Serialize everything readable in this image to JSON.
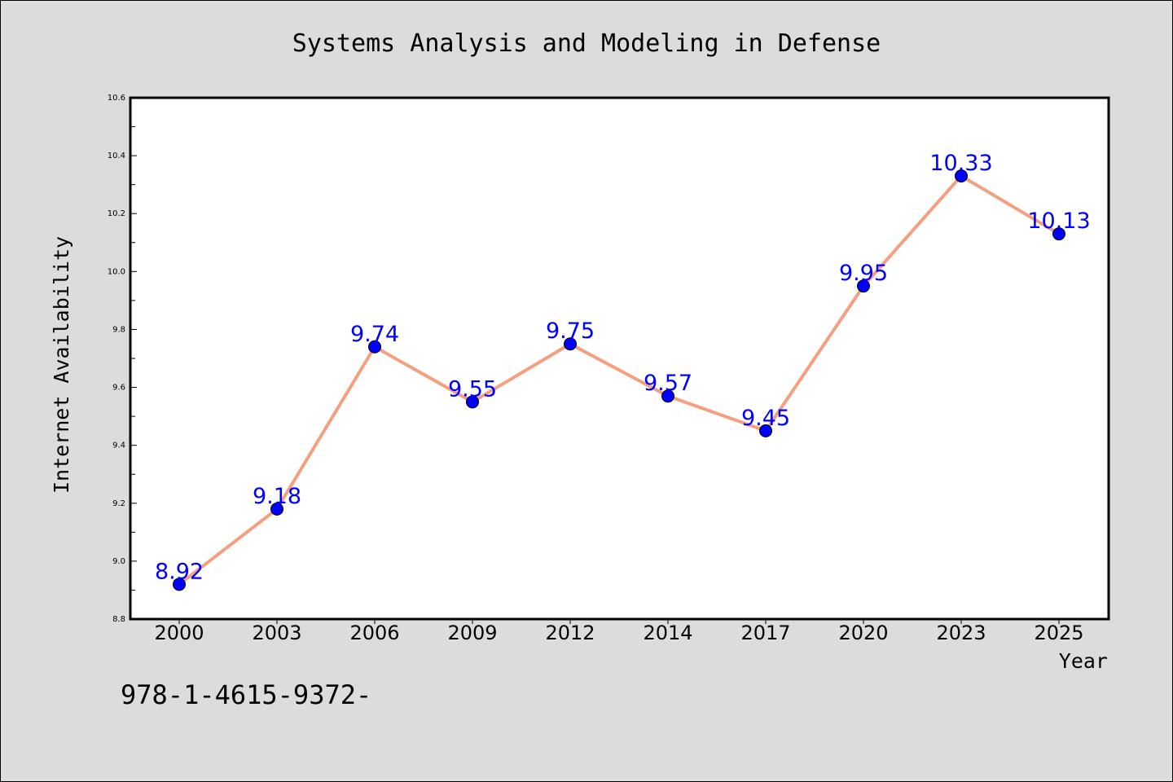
{
  "chart_data": {
    "type": "line",
    "title": "Systems Analysis and Modeling in Defense",
    "xlabel": "Year",
    "ylabel": "Internet Availability",
    "categories": [
      "2000",
      "2003",
      "2006",
      "2009",
      "2012",
      "2014",
      "2017",
      "2020",
      "2023",
      "2025"
    ],
    "values": [
      8.92,
      9.18,
      9.74,
      9.55,
      9.75,
      9.57,
      9.45,
      9.95,
      10.33,
      10.13
    ],
    "value_labels": [
      "8.92",
      "9.18",
      "9.74",
      "9.55",
      "9.75",
      "9.57",
      "9.45",
      "9.95",
      "10.33",
      "10.13"
    ],
    "ylim": [
      8.8,
      10.6
    ],
    "yticks": [
      "8.8",
      "9.0",
      "9.2",
      "9.4",
      "9.6",
      "9.8",
      "10.0",
      "10.2",
      "10.4",
      "10.6"
    ],
    "grid": false,
    "line_color": "#f4a080",
    "marker_color": "#0000ff",
    "label_color": "#0000ff"
  },
  "footer_text": "978-1-4615-9372-"
}
